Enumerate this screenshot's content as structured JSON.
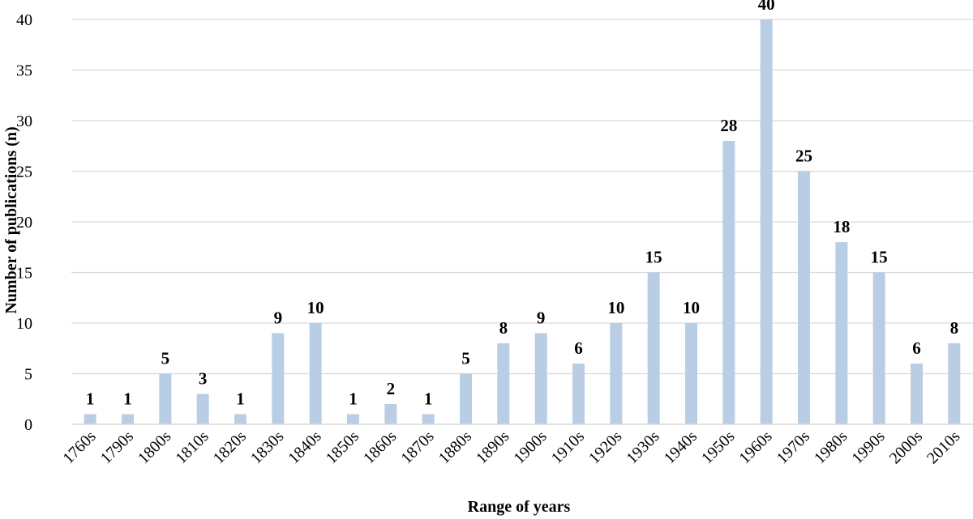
{
  "chart_data": {
    "type": "bar",
    "categories": [
      "1760s",
      "1790s",
      "1800s",
      "1810s",
      "1820s",
      "1830s",
      "1840s",
      "1850s",
      "1860s",
      "1870s",
      "1880s",
      "1890s",
      "1900s",
      "1910s",
      "1920s",
      "1930s",
      "1940s",
      "1950s",
      "1960s",
      "1970s",
      "1980s",
      "1990s",
      "2000s",
      "2010s"
    ],
    "values": [
      1,
      1,
      5,
      3,
      1,
      9,
      10,
      1,
      2,
      1,
      5,
      8,
      9,
      6,
      10,
      15,
      10,
      28,
      40,
      25,
      18,
      15,
      6,
      8
    ],
    "title": "",
    "xlabel": "Range of years",
    "ylabel": "Number of publications (n)",
    "ylim": [
      0,
      40
    ],
    "yticks": [
      0,
      5,
      10,
      15,
      20,
      25,
      30,
      35,
      40
    ],
    "grid": true,
    "bar_color": "#B9CDE5",
    "grid_color": "#D9D9D9",
    "data_labels": true
  }
}
